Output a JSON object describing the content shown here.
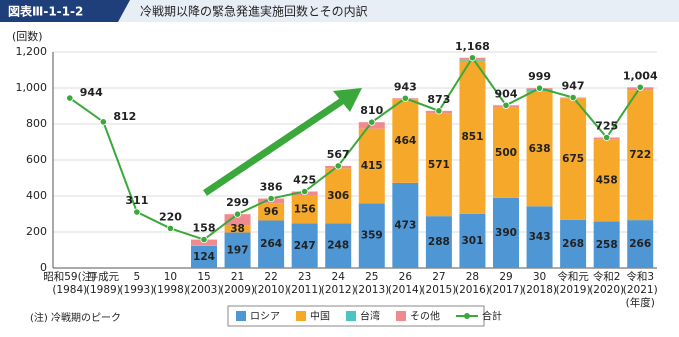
{
  "figure_id": "図表Ⅲ-1-1-2",
  "chart_data": {
    "type": "bar",
    "title": "冷戦期以降の緊急発進実施回数とその内訳",
    "y_label": "(回数)",
    "x_unit": "(年度)",
    "note": "(注) 冷戦期のピーク",
    "categories": [
      "昭和59(注)",
      "平成元",
      "5",
      "10",
      "15",
      "21",
      "22",
      "23",
      "24",
      "25",
      "26",
      "27",
      "28",
      "29",
      "30",
      "令和元",
      "令和2",
      "令和3"
    ],
    "years": [
      "(1984)",
      "(1989)",
      "(1993)",
      "(1998)",
      "(2003)",
      "(2009)",
      "(2010)",
      "(2011)",
      "(2012)",
      "(2013)",
      "(2014)",
      "(2015)",
      "(2016)",
      "(2017)",
      "(2018)",
      "(2019)",
      "(2020)",
      "(2021)"
    ],
    "ylim": [
      0,
      1200
    ],
    "yticks": [
      0,
      200,
      400,
      600,
      800,
      {
        "value": 1000,
        "label": "1,000"
      },
      {
        "value": 1200,
        "label": "1,200"
      }
    ],
    "grid": true,
    "series": [
      {
        "name": "ロシア",
        "color": "#4f97d4",
        "values": [
          null,
          null,
          null,
          null,
          124,
          197,
          264,
          247,
          248,
          359,
          473,
          288,
          301,
          390,
          343,
          268,
          258,
          266
        ]
      },
      {
        "name": "中国",
        "color": "#f5a82a",
        "values": [
          null,
          null,
          null,
          null,
          2,
          38,
          96,
          156,
          306,
          415,
          464,
          571,
          851,
          500,
          638,
          675,
          458,
          722
        ]
      },
      {
        "name": "台湾",
        "color": "#4dc4c4",
        "values": [
          null,
          null,
          null,
          null,
          0,
          0,
          0,
          0,
          0,
          0,
          0,
          0,
          8,
          0,
          8,
          0,
          0,
          0
        ]
      },
      {
        "name": "その他",
        "color": "#ef8a8f",
        "values": [
          null,
          null,
          null,
          null,
          32,
          64,
          26,
          22,
          13,
          36,
          6,
          14,
          8,
          14,
          10,
          4,
          9,
          16
        ]
      }
    ],
    "line": {
      "name": "合計",
      "color": "#3aa83a",
      "values": [
        944,
        812,
        311,
        220,
        158,
        299,
        386,
        425,
        567,
        810,
        943,
        873,
        1168,
        904,
        999,
        947,
        725,
        1004
      ],
      "value_labels": [
        "944",
        "812",
        "311",
        "220",
        "158",
        "299",
        "386",
        "425",
        "567",
        "810",
        "943",
        "873",
        "1,168",
        "904",
        "999",
        "947",
        "725",
        "1,004"
      ]
    }
  }
}
